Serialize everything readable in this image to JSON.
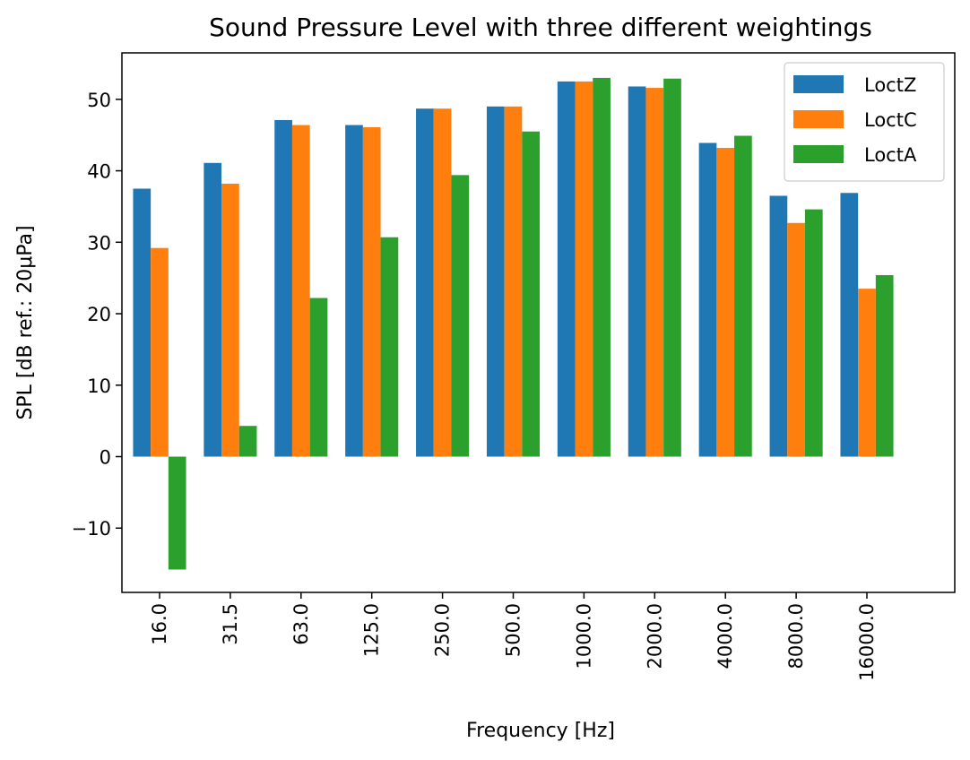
{
  "chart_data": {
    "type": "bar",
    "title": "Sound Pressure Level with three different weightings",
    "xlabel": "Frequency [Hz]",
    "ylabel": "SPL [dB ref.: 20μPa]",
    "ylim": [
      -19,
      56.5
    ],
    "yticks": [
      -10,
      0,
      10,
      20,
      30,
      40,
      50
    ],
    "ytick_labels": [
      "−10",
      "0",
      "10",
      "20",
      "30",
      "40",
      "50"
    ],
    "categories": [
      "16.0",
      "31.5",
      "63.0",
      "125.0",
      "250.0",
      "500.0",
      "1000.0",
      "2000.0",
      "4000.0",
      "8000.0",
      "16000.0"
    ],
    "series": [
      {
        "name": "LoctZ",
        "color": "#1f77b4",
        "values": [
          37.5,
          41.1,
          47.1,
          46.4,
          48.7,
          49.0,
          52.5,
          51.8,
          43.9,
          36.5,
          36.9
        ]
      },
      {
        "name": "LoctC",
        "color": "#ff7f0e",
        "values": [
          29.2,
          38.2,
          46.4,
          46.1,
          48.7,
          49.0,
          52.5,
          51.6,
          43.2,
          32.7,
          23.5
        ]
      },
      {
        "name": "LoctA",
        "color": "#2ca02c",
        "values": [
          -15.8,
          4.3,
          22.2,
          30.7,
          39.4,
          45.5,
          53.0,
          52.9,
          44.9,
          34.6,
          25.4
        ]
      }
    ],
    "legend_position": "top-right",
    "grid": false
  }
}
